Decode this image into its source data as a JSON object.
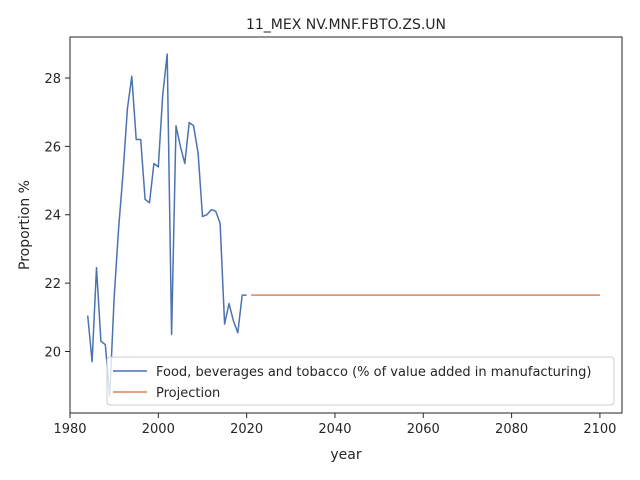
{
  "chart_data": {
    "type": "line",
    "title": "11_MEX NV.MNF.FBTO.ZS.UN",
    "xlabel": "year",
    "ylabel": "Proportion %",
    "xlim": [
      1980,
      2105
    ],
    "ylim": [
      18.2,
      29.2
    ],
    "xticks": [
      1980,
      2000,
      2020,
      2040,
      2060,
      2080,
      2100
    ],
    "yticks": [
      20,
      22,
      24,
      26,
      28
    ],
    "grid": false,
    "legend_position": "lower-right",
    "series": [
      {
        "name": "Food, beverages and tobacco (% of value added in manufacturing)",
        "color": "#4c72b0",
        "x": [
          1984,
          1985,
          1986,
          1987,
          1988,
          1989,
          1990,
          1991,
          1992,
          1993,
          1994,
          1995,
          1996,
          1997,
          1998,
          1999,
          2000,
          2001,
          2002,
          2003,
          2004,
          2005,
          2006,
          2007,
          2008,
          2009,
          2010,
          2011,
          2012,
          2013,
          2014,
          2015,
          2016,
          2017,
          2018,
          2019,
          2020
        ],
        "y": [
          21.05,
          19.7,
          22.45,
          20.3,
          20.2,
          18.7,
          21.6,
          23.6,
          25.2,
          27.1,
          28.05,
          26.2,
          26.2,
          24.45,
          24.35,
          25.5,
          25.4,
          27.5,
          28.7,
          20.5,
          26.6,
          26.0,
          25.5,
          26.7,
          26.6,
          25.8,
          23.95,
          24.0,
          24.15,
          24.1,
          23.75,
          20.8,
          21.4,
          20.9,
          20.55,
          21.65,
          21.65
        ]
      },
      {
        "name": "Projection",
        "color": "#dd8452",
        "x": [
          2021,
          2100
        ],
        "y": [
          21.65,
          21.65
        ]
      }
    ]
  }
}
